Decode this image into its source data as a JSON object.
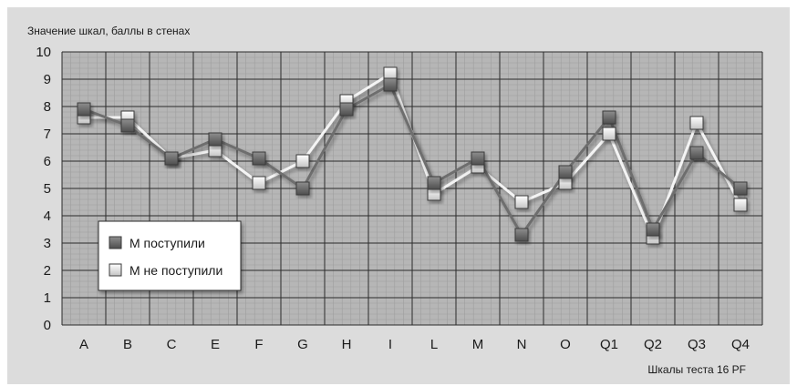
{
  "chart_data": {
    "type": "line",
    "ylabel": "Значение шкал, баллы в стенах",
    "xlabel": "Шкалы теста 16 PF",
    "categories": [
      "A",
      "B",
      "C",
      "E",
      "F",
      "G",
      "H",
      "I",
      "L",
      "M",
      "N",
      "O",
      "Q1",
      "Q2",
      "Q3",
      "Q4"
    ],
    "ylim": [
      0,
      10
    ],
    "yticks": [
      "0",
      "1",
      "2",
      "3",
      "4",
      "5",
      "6",
      "7",
      "8",
      "9",
      "10"
    ],
    "grid": true,
    "legend_position": "bottom-left",
    "series": [
      {
        "name": "М поступили",
        "color": "#6e6e6e",
        "values": [
          7.9,
          7.3,
          6.1,
          6.8,
          6.1,
          5.0,
          7.9,
          8.8,
          5.2,
          6.1,
          3.3,
          5.6,
          7.6,
          3.5,
          6.3,
          5.0
        ]
      },
      {
        "name": "М не поступили",
        "color": "#f2f2f2",
        "values": [
          7.6,
          7.6,
          6.1,
          6.4,
          5.2,
          6.0,
          8.2,
          9.2,
          4.8,
          5.8,
          4.5,
          5.2,
          7.0,
          3.2,
          7.4,
          4.4
        ]
      }
    ],
    "colors": {
      "background": "#dcdcdc",
      "plot": "#b6b6b6",
      "grid": "#2b2b2b"
    }
  }
}
